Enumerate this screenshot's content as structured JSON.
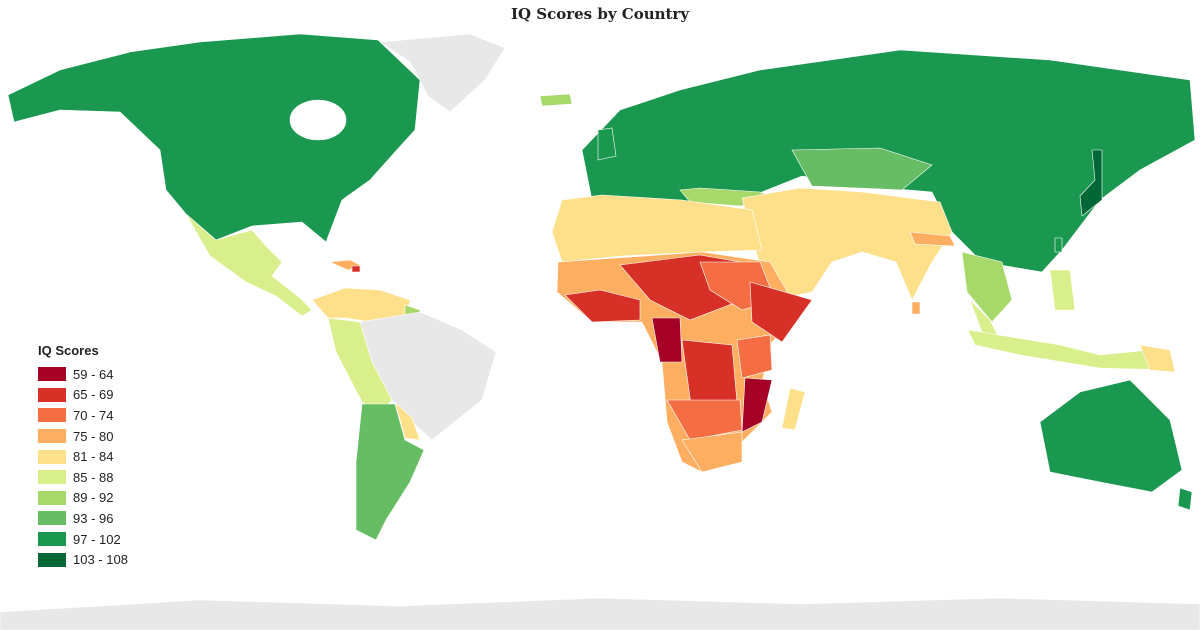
{
  "title": "IQ Scores by Country",
  "legend": {
    "title": "IQ Scores",
    "bins": [
      {
        "label": "59 - 64",
        "color": "#a50026"
      },
      {
        "label": "65 - 69",
        "color": "#d73027"
      },
      {
        "label": "70 - 74",
        "color": "#f46d43"
      },
      {
        "label": "75 - 80",
        "color": "#fdae61"
      },
      {
        "label": "81 - 84",
        "color": "#fee08b"
      },
      {
        "label": "85 - 88",
        "color": "#d9ef8b"
      },
      {
        "label": "89 - 92",
        "color": "#a6d96a"
      },
      {
        "label": "93 - 96",
        "color": "#66bd63"
      },
      {
        "label": "97 - 102",
        "color": "#1a9850"
      },
      {
        "label": "103 - 108",
        "color": "#006837"
      }
    ],
    "no_data_color": "#e8e8e8"
  }
}
